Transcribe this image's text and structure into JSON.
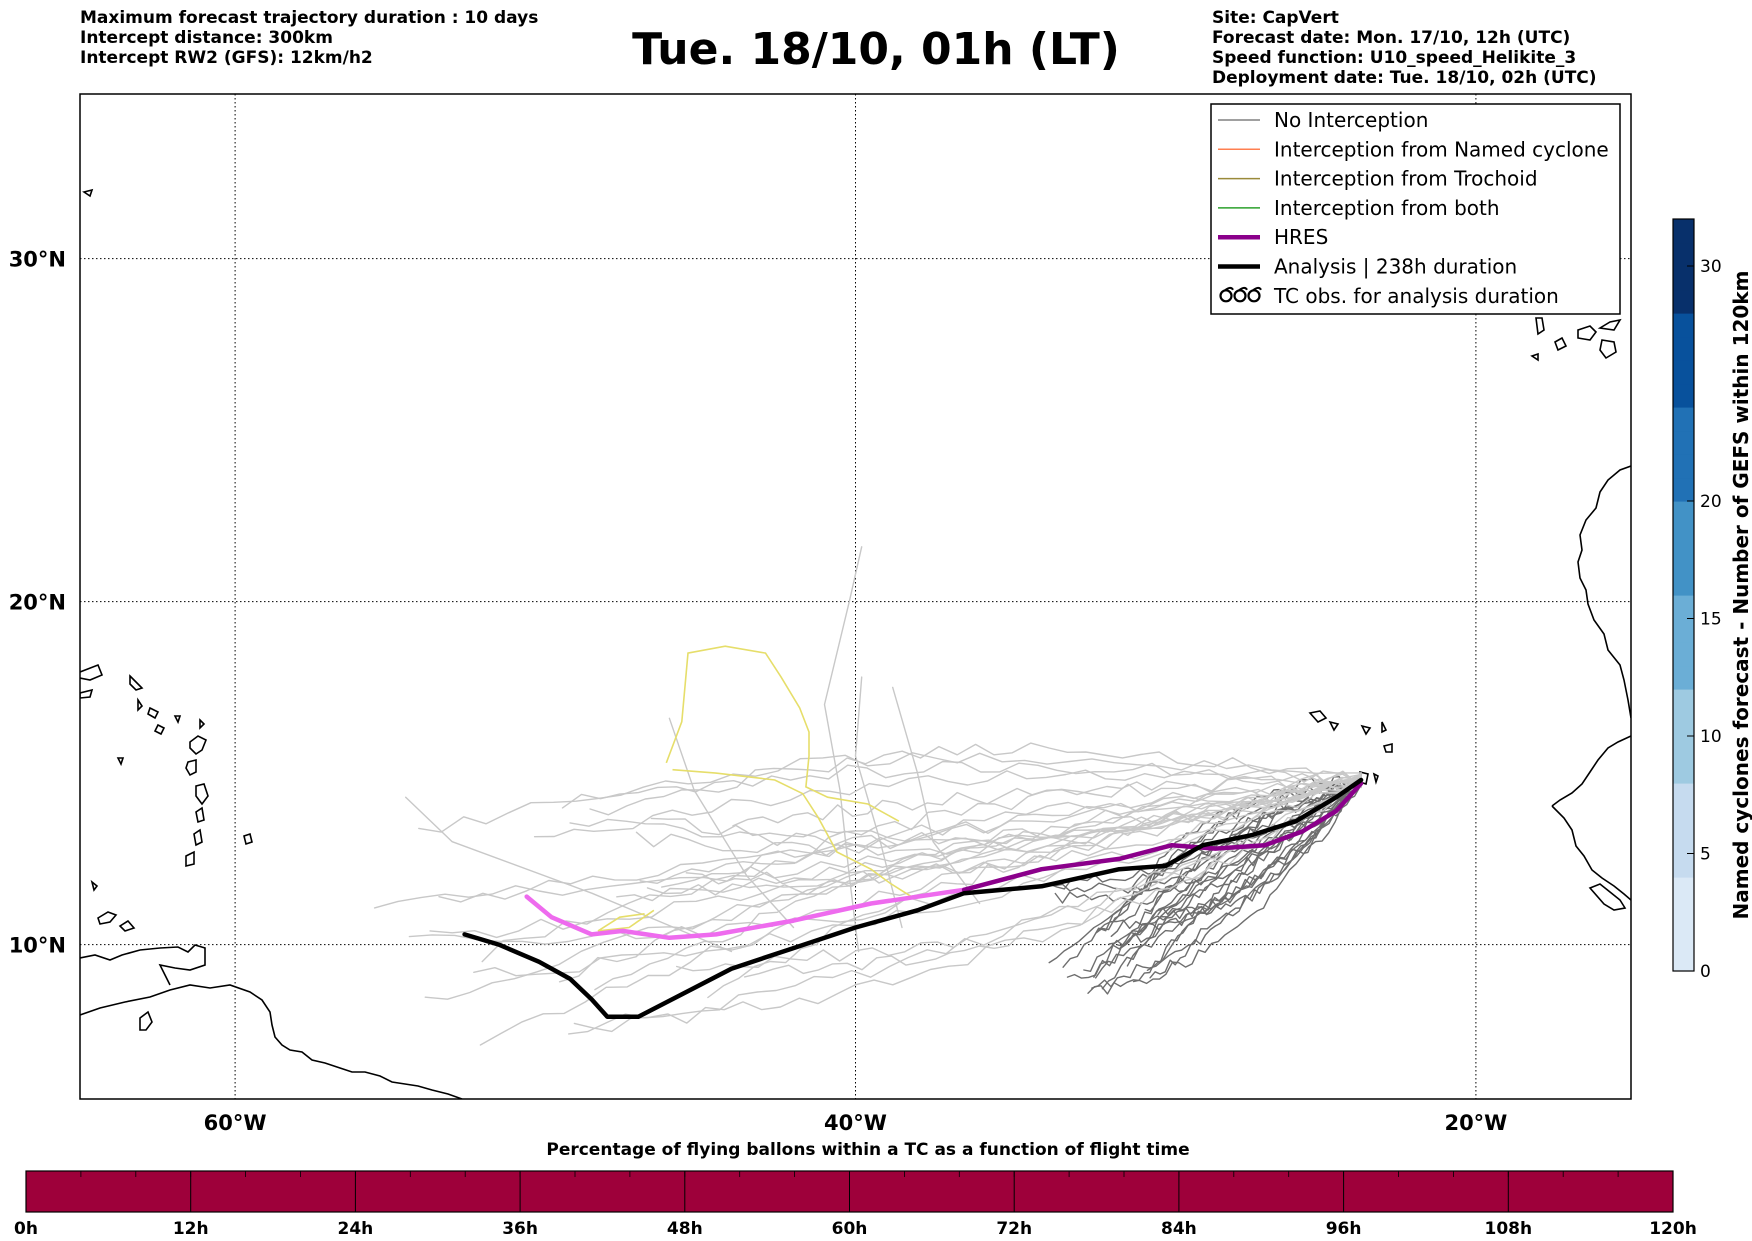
{
  "header": {
    "left_lines": [
      "Maximum forecast trajectory duration : 10 days",
      "Intercept distance: 300km",
      "Intercept RW2 (GFS):  12km/h2"
    ],
    "title": "Tue. 18/10, 01h (LT)",
    "right_lines": [
      "Site: CapVert",
      "Forecast date: Mon. 17/10, 12h (UTC)",
      "Speed function: U10_speed_Helikite_3",
      "Deployment date: Tue. 18/10, 02h (UTC)"
    ]
  },
  "map": {
    "lat_range": [
      5.5,
      34.8
    ],
    "lon_range": [
      -65,
      -15
    ],
    "lat_ticks": [
      "30°N",
      "20°N",
      "10°N"
    ],
    "lon_ticks": [
      "60°W",
      "40°W",
      "20°W"
    ],
    "grid": true,
    "grid_style": "dotted"
  },
  "legend": {
    "placement": "top-right",
    "items": [
      {
        "label": "No Interception",
        "color": "#808080",
        "style": "line-thin"
      },
      {
        "label": "Interception from Named cyclone",
        "color": "#ff7f50",
        "style": "line-thin"
      },
      {
        "label": "Interception from Trochoid",
        "color": "#9a8a3a",
        "style": "line-thin"
      },
      {
        "label": "Interception from both",
        "color": "#2ca02c",
        "style": "line-thin"
      },
      {
        "label": "HRES",
        "color": "#8b008b",
        "style": "line-thick"
      },
      {
        "label": "Analysis | 238h duration",
        "color": "#000000",
        "style": "line-thick"
      },
      {
        "label": "TC obs. for analysis duration",
        "color": "#000000",
        "style": "cyclone-symbols"
      }
    ]
  },
  "colorbar_right": {
    "label": "Named cyclones forecast - Number of GEFS within 120km",
    "ticks": [
      "0",
      "5",
      "10",
      "15",
      "20",
      "30"
    ],
    "colors": [
      "#dbe9f6",
      "#c6dbef",
      "#9ecae1",
      "#6baed6",
      "#4292c6",
      "#2171b5",
      "#08519c",
      "#08306b"
    ]
  },
  "colorbar_bottom": {
    "title": "Percentage of flying ballons within a TC as a function of flight time",
    "ticks": [
      "0h",
      "12h",
      "24h",
      "36h",
      "48h",
      "60h",
      "72h",
      "84h",
      "96h",
      "108h",
      "120h"
    ],
    "color": "#9e003a"
  },
  "chart_data": {
    "type": "trajectory-map",
    "analysis_track": [
      [
        -52.6,
        10.3
      ],
      [
        -51.5,
        10.0
      ],
      [
        -50.2,
        9.5
      ],
      [
        -49.2,
        9.0
      ],
      [
        -48.5,
        8.4
      ],
      [
        -48.0,
        7.9
      ],
      [
        -47.0,
        7.9
      ],
      [
        -45.5,
        8.6
      ],
      [
        -44.0,
        9.3
      ],
      [
        -42.0,
        9.9
      ],
      [
        -40.0,
        10.5
      ],
      [
        -38.0,
        11.0
      ],
      [
        -36.5,
        11.5
      ],
      [
        -34.0,
        11.7
      ],
      [
        -31.5,
        12.2
      ],
      [
        -30.0,
        12.3
      ],
      [
        -28.8,
        12.9
      ],
      [
        -27.2,
        13.2
      ],
      [
        -25.8,
        13.6
      ],
      [
        -24.5,
        14.3
      ],
      [
        -23.7,
        14.8
      ]
    ],
    "hres_track": [
      [
        -50.6,
        11.4
      ],
      [
        -49.8,
        10.8
      ],
      [
        -48.5,
        10.3
      ],
      [
        -47.5,
        10.4
      ],
      [
        -46.0,
        10.2
      ],
      [
        -44.5,
        10.3
      ],
      [
        -42.0,
        10.7
      ],
      [
        -39.5,
        11.2
      ],
      [
        -36.5,
        11.6
      ],
      [
        -34.0,
        12.2
      ],
      [
        -31.5,
        12.5
      ],
      [
        -29.8,
        12.9
      ],
      [
        -28.4,
        12.8
      ],
      [
        -26.8,
        12.9
      ],
      [
        -25.6,
        13.3
      ],
      [
        -24.5,
        13.9
      ],
      [
        -23.7,
        14.7
      ]
    ],
    "trochoid_tracks": [
      [
        [
          -46.1,
          15.3
        ],
        [
          -45.6,
          16.5
        ],
        [
          -45.4,
          18.5
        ],
        [
          -44.2,
          18.7
        ],
        [
          -42.9,
          18.5
        ],
        [
          -42.4,
          17.8
        ],
        [
          -41.8,
          16.9
        ],
        [
          -41.5,
          16.2
        ],
        [
          -41.5,
          15.5
        ],
        [
          -41.6,
          14.6
        ],
        [
          -40.9,
          14.3
        ],
        [
          -39.6,
          14.1
        ],
        [
          -38.6,
          13.6
        ]
      ],
      [
        [
          -45.9,
          15.1
        ],
        [
          -44.5,
          15.0
        ],
        [
          -42.6,
          14.8
        ],
        [
          -41.7,
          14.4
        ],
        [
          -41.2,
          13.7
        ],
        [
          -40.6,
          12.7
        ],
        [
          -39.5,
          12.2
        ],
        [
          -38.9,
          11.8
        ],
        [
          -38.2,
          11.4
        ]
      ],
      [
        [
          -46.5,
          11.0
        ],
        [
          -47.3,
          10.5
        ],
        [
          -48.3,
          10.4
        ],
        [
          -47.6,
          10.8
        ],
        [
          -46.8,
          10.9
        ]
      ]
    ],
    "cyclone_interception_count": 0
  }
}
